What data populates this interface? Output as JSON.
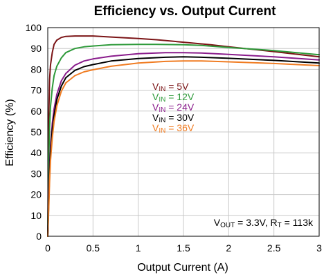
{
  "chart_data": {
    "type": "line",
    "title": "Efficiency vs. Output Current",
    "xlabel": "Output Current (A)",
    "ylabel": "Efficiency (%)",
    "xlim": [
      0,
      3
    ],
    "ylim": [
      0,
      100
    ],
    "xticks": [
      "0",
      "0.5",
      "1",
      "1.5",
      "2",
      "2.5",
      "3"
    ],
    "yticks": [
      "0",
      "10",
      "20",
      "30",
      "40",
      "50",
      "60",
      "70",
      "80",
      "90",
      "100"
    ],
    "grid": true,
    "legend_position": "center",
    "annotation": {
      "prefix": "V",
      "sub1": "OUT",
      "mid": " = 3.3V, R",
      "sub2": "T",
      "suffix": " = 113k"
    },
    "series": [
      {
        "name": "VIN = 5V",
        "label_main": "V",
        "label_sub": "IN",
        "label_rest": " = 5V",
        "color": "#7b1416",
        "x": [
          0,
          0.005,
          0.01,
          0.02,
          0.03,
          0.05,
          0.07,
          0.1,
          0.15,
          0.2,
          0.3,
          0.5,
          0.7,
          1.0,
          1.2,
          1.5,
          1.8,
          2.0,
          2.5,
          3.0
        ],
        "y": [
          0,
          28,
          55,
          75,
          82,
          88,
          92,
          94,
          95.3,
          95.8,
          96,
          96,
          95.5,
          94.8,
          94.2,
          93,
          91.8,
          90.8,
          88.5,
          86
        ]
      },
      {
        "name": "VIN = 12V",
        "label_main": "V",
        "label_sub": "IN",
        "label_rest": " = 12V",
        "color": "#2e9a3a",
        "x": [
          0,
          0.01,
          0.02,
          0.03,
          0.05,
          0.07,
          0.1,
          0.15,
          0.2,
          0.3,
          0.4,
          0.5,
          0.7,
          1.0,
          1.2,
          1.5,
          1.7,
          2.0,
          2.5,
          3.0
        ],
        "y": [
          0,
          35,
          52,
          62,
          71,
          77,
          81.5,
          85.5,
          88,
          90,
          90.8,
          91.2,
          91.8,
          92,
          92,
          91.8,
          91.5,
          90.5,
          89,
          87
        ]
      },
      {
        "name": "VIN = 24V",
        "label_main": "V",
        "label_sub": "IN",
        "label_rest": " = 24V",
        "color": "#8a1c8c",
        "x": [
          0,
          0.01,
          0.02,
          0.03,
          0.05,
          0.07,
          0.1,
          0.15,
          0.2,
          0.3,
          0.4,
          0.5,
          0.7,
          1.0,
          1.3,
          1.5,
          1.7,
          2.0,
          2.5,
          3.0
        ],
        "y": [
          0,
          18,
          33,
          43,
          54,
          61,
          68,
          74.5,
          78,
          82,
          84,
          85,
          86.3,
          87.5,
          88,
          88,
          87.8,
          87.2,
          86,
          84.5
        ]
      },
      {
        "name": "VIN = 30V",
        "label_main": "V",
        "label_sub": "IN",
        "label_rest": " = 30V",
        "color": "#000000",
        "x": [
          0,
          0.01,
          0.02,
          0.03,
          0.05,
          0.07,
          0.1,
          0.15,
          0.2,
          0.3,
          0.4,
          0.5,
          0.7,
          1.0,
          1.3,
          1.5,
          1.7,
          2.0,
          2.5,
          3.0
        ],
        "y": [
          0,
          15,
          30,
          40,
          51,
          58,
          65.5,
          72,
          76,
          79.5,
          81.3,
          82.3,
          84,
          85.2,
          85.8,
          86,
          85.8,
          85.3,
          84.3,
          83
        ]
      },
      {
        "name": "VIN = 36V",
        "label_main": "V",
        "label_sub": "IN",
        "label_rest": " = 36V",
        "color": "#f07c22",
        "x": [
          0,
          0.01,
          0.02,
          0.03,
          0.05,
          0.07,
          0.1,
          0.15,
          0.2,
          0.3,
          0.4,
          0.5,
          0.7,
          1.0,
          1.3,
          1.5,
          1.7,
          2.0,
          2.5,
          3.0
        ],
        "y": [
          0,
          12,
          26,
          36,
          47,
          55,
          62.5,
          69.5,
          73.5,
          77,
          78.8,
          79.8,
          81.5,
          83,
          83.8,
          84,
          84,
          83.6,
          82.8,
          81.8
        ]
      }
    ]
  }
}
